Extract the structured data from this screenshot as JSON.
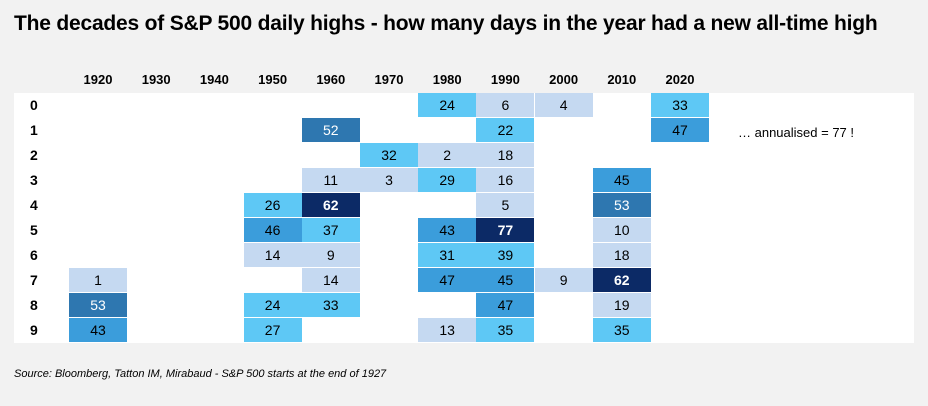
{
  "title": "The decades of S&P 500 daily highs - how many days in the year had a new all-time high",
  "source": "Source: Bloomberg, Tatton IM, Mirabaud - S&P 500 starts at the end of 1927",
  "annotation": "… annualised = 77 !",
  "colors": {
    "level1": "#c5d9f1",
    "level2": "#5ec8f5",
    "level3": "#3b9ddb",
    "level4": "#2e77b0",
    "level5": "#0c2a66"
  },
  "chart_data": {
    "type": "heatmap",
    "title": "The decades of S&P 500 daily highs - how many days in the year had a new all-time high",
    "columns": [
      "1920",
      "1930",
      "1940",
      "1950",
      "1960",
      "1970",
      "1980",
      "1990",
      "2000",
      "2010",
      "2020"
    ],
    "rows": [
      "0",
      "1",
      "2",
      "3",
      "4",
      "5",
      "6",
      "7",
      "8",
      "9"
    ],
    "values": [
      [
        null,
        null,
        null,
        null,
        null,
        null,
        24,
        6,
        4,
        null,
        33
      ],
      [
        null,
        null,
        null,
        null,
        52,
        null,
        null,
        22,
        null,
        null,
        47
      ],
      [
        null,
        null,
        null,
        null,
        null,
        32,
        2,
        18,
        null,
        null,
        null
      ],
      [
        null,
        null,
        null,
        null,
        11,
        3,
        29,
        16,
        null,
        45,
        null
      ],
      [
        null,
        null,
        null,
        26,
        62,
        null,
        null,
        5,
        null,
        53,
        null
      ],
      [
        null,
        null,
        null,
        46,
        37,
        null,
        43,
        77,
        null,
        10,
        null
      ],
      [
        null,
        null,
        null,
        14,
        9,
        null,
        31,
        39,
        null,
        18,
        null
      ],
      [
        1,
        null,
        null,
        null,
        14,
        null,
        47,
        45,
        9,
        62,
        null
      ],
      [
        53,
        null,
        null,
        24,
        33,
        null,
        null,
        47,
        null,
        19,
        null
      ],
      [
        43,
        null,
        null,
        27,
        null,
        null,
        13,
        35,
        null,
        35,
        null
      ]
    ]
  }
}
